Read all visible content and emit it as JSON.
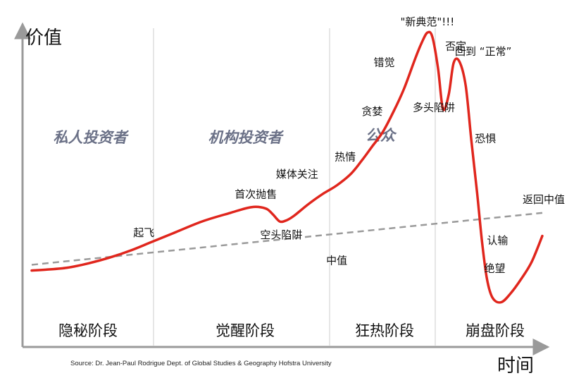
{
  "chart_data": {
    "type": "line",
    "ylabel": "价值",
    "xlabel": "时间",
    "phases": [
      "隐秘阶段",
      "觉醒阶段",
      "狂热阶段",
      "崩盘阶段"
    ],
    "participants": [
      "私人投资者",
      "机构投资者",
      "公众"
    ],
    "series": [
      {
        "x": [
          0,
          2,
          5,
          8,
          11,
          14,
          17,
          20,
          24,
          28,
          31,
          33,
          34,
          35,
          36,
          37,
          39,
          41,
          43,
          45,
          46.5,
          48,
          49.5,
          51,
          52.5,
          54,
          55,
          55.8,
          56.5,
          57.3,
          58,
          58.8,
          59.5,
          60.3,
          61.2,
          62,
          62.8,
          63.5,
          64.2,
          65,
          66.2,
          67.5,
          69,
          70.5,
          72
        ],
        "y": [
          15,
          15.3,
          16,
          17.5,
          19.5,
          22,
          25,
          28,
          32,
          35,
          37,
          36.5,
          34.5,
          32,
          32.5,
          34,
          38,
          41.5,
          44.5,
          48.5,
          53,
          58,
          63,
          70,
          78,
          88,
          94,
          97.5,
          96,
          85,
          71,
          76,
          87,
          87.5,
          79,
          60,
          42,
          25,
          12,
          5.5,
          4,
          7,
          12,
          18,
          27
        ]
      },
      {
        "name": "中值",
        "style": "dashed",
        "x": [
          0,
          72
        ],
        "y": [
          17,
          35
        ]
      }
    ],
    "annotations": [
      {
        "text": "起飞",
        "x": 17,
        "y": 25
      },
      {
        "text": "首次抛售",
        "x": 31,
        "y": 37
      },
      {
        "text": "空头陷阱",
        "x": 35,
        "y": 32
      },
      {
        "text": "中值",
        "x": 44,
        "y": 26
      },
      {
        "text": "媒体关注",
        "x": 39,
        "y": 44
      },
      {
        "text": "热情",
        "x": 45,
        "y": 50
      },
      {
        "text": "贪婪",
        "x": 49,
        "y": 66
      },
      {
        "text": "错觉",
        "x": 51,
        "y": 83
      },
      {
        "text": "\"新典范\"!!!",
        "x": 55.8,
        "y": 97.5
      },
      {
        "text": "否定",
        "x": 58.8,
        "y": 92
      },
      {
        "text": "多头陷阱",
        "x": 58,
        "y": 71
      },
      {
        "text": "回到 “正常”",
        "x": 60.3,
        "y": 87.5
      },
      {
        "text": "恐惧",
        "x": 62,
        "y": 60
      },
      {
        "text": "认输",
        "x": 63.5,
        "y": 25
      },
      {
        "text": "绝望",
        "x": 65,
        "y": 5.5
      },
      {
        "text": "返回中值",
        "x": 72,
        "y": 35
      }
    ],
    "grid": false,
    "source": "Source: Dr. Jean-Paul Rodrigue Dept. of Global Studies & Geography Hofstra University",
    "colors": {
      "line": "#e0261d",
      "median": "#9a9a9a",
      "participant": "#6b7187",
      "divider": "#d6d6d6"
    }
  }
}
